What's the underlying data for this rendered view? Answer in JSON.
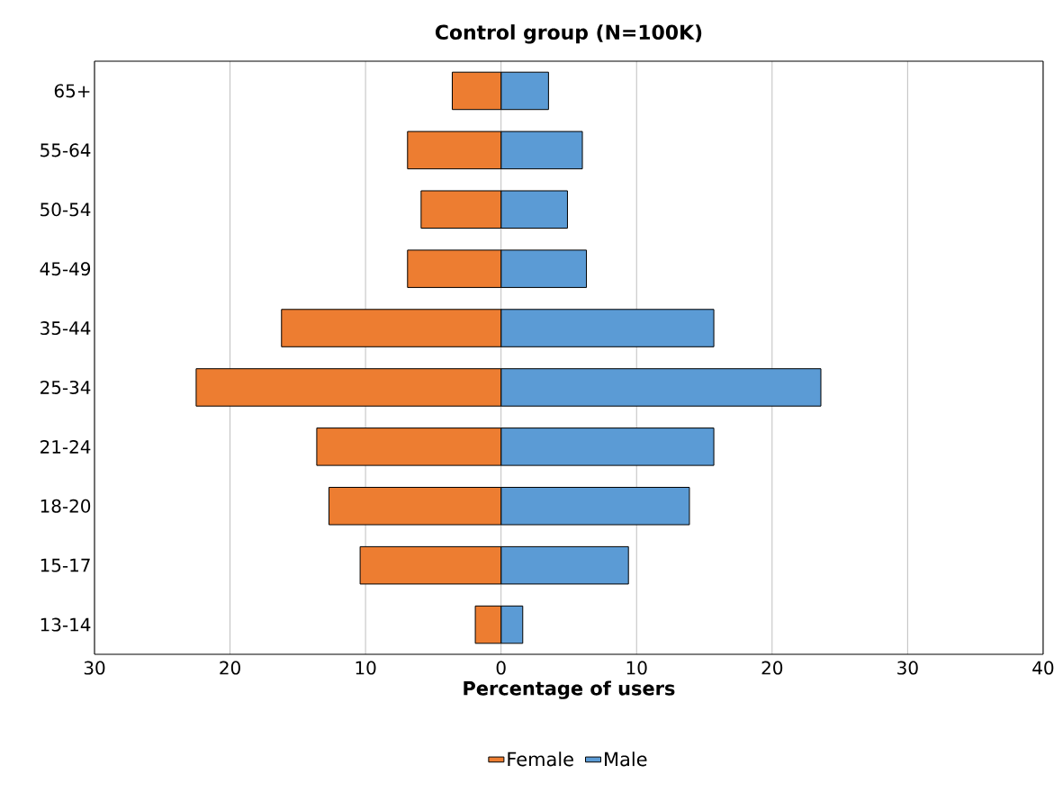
{
  "chart_data": {
    "type": "bar",
    "orientation": "horizontal",
    "title": "Control group (N=100K)",
    "xlabel": "Percentage of users",
    "categories": [
      "65+",
      "55-64",
      "50-54",
      "45-49",
      "35-44",
      "25-34",
      "21-24",
      "18-20",
      "15-17",
      "13-14"
    ],
    "series": [
      {
        "name": "Female",
        "color": "#ed7d31",
        "values": [
          -3.6,
          -6.9,
          -5.9,
          -6.9,
          -16.2,
          -22.5,
          -13.6,
          -12.7,
          -10.4,
          -1.9
        ]
      },
      {
        "name": "Male",
        "color": "#5b9bd5",
        "values": [
          3.5,
          6.0,
          4.9,
          6.3,
          15.7,
          23.6,
          15.7,
          13.9,
          9.4,
          1.6
        ]
      }
    ],
    "xlim": [
      -30,
      40
    ],
    "xticks": [
      {
        "value": -30,
        "label": "30"
      },
      {
        "value": -20,
        "label": "20"
      },
      {
        "value": -10,
        "label": "10"
      },
      0,
      10,
      20,
      30,
      40
    ],
    "grid": "x",
    "legend": "bottom",
    "stacked": true
  }
}
